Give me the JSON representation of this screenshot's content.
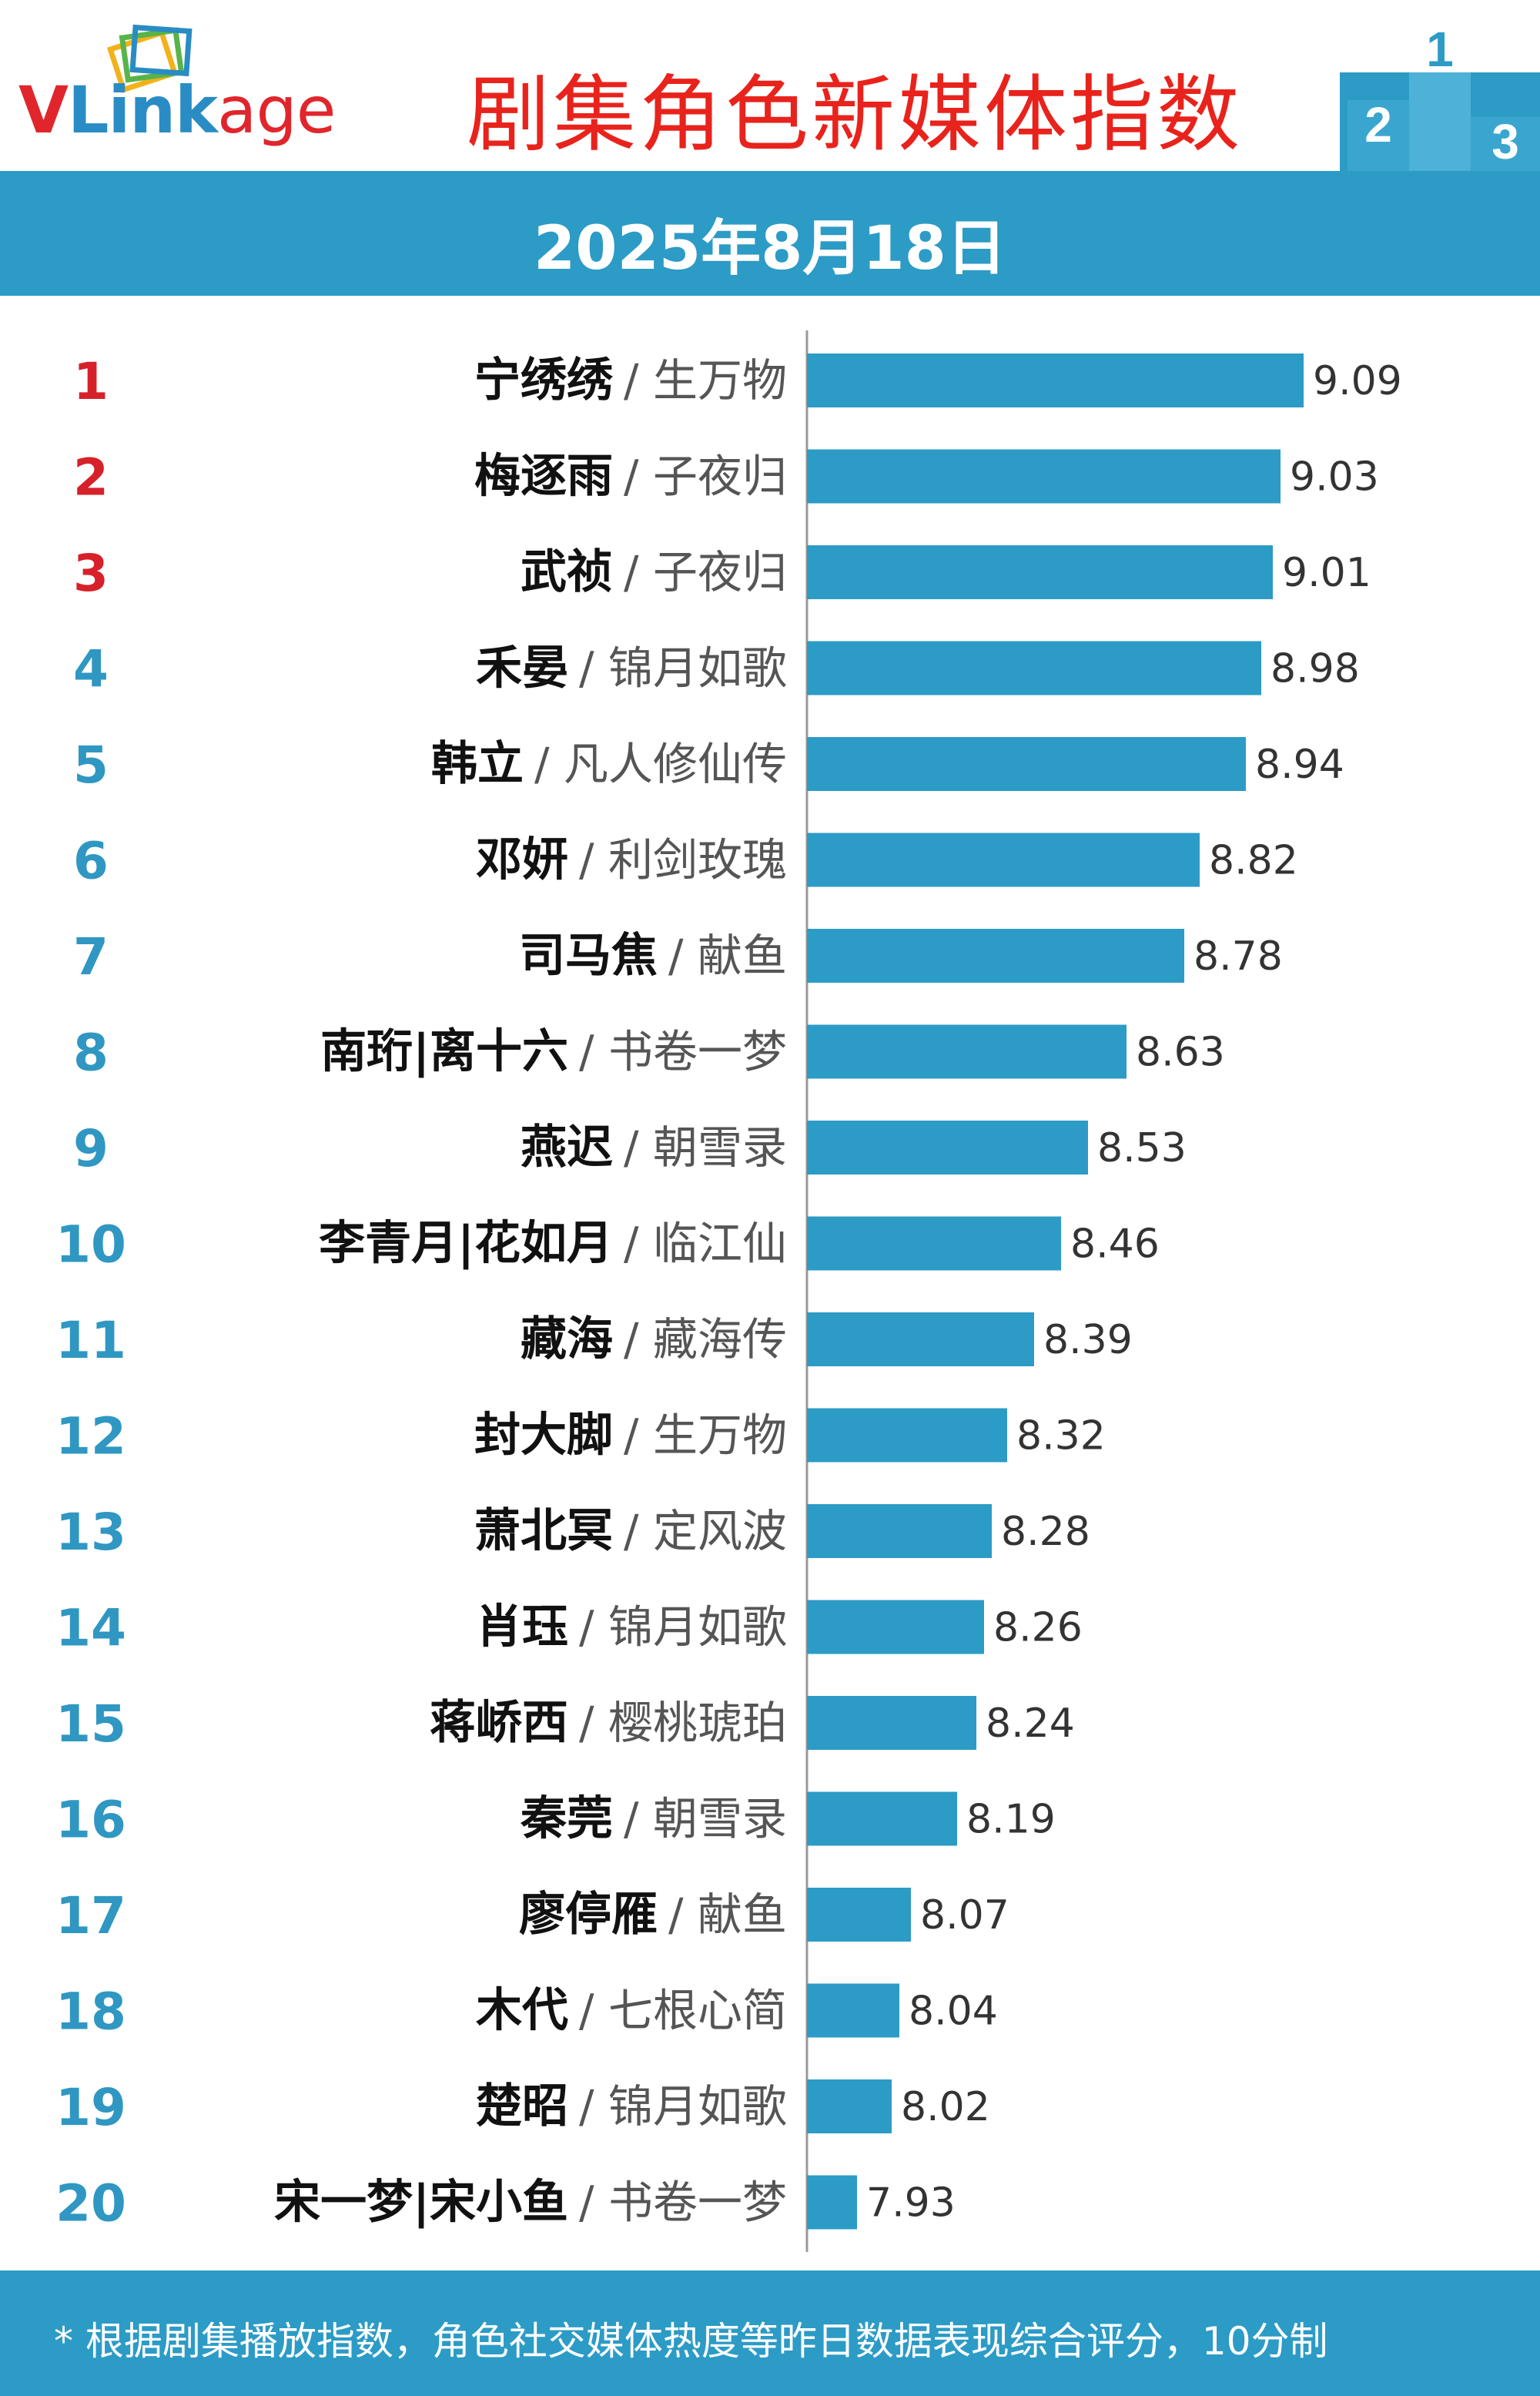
{
  "header": {
    "logo_text": {
      "v": "V",
      "link": "Link",
      "age": "age"
    },
    "title": "剧集角色新媒体指数",
    "podium_digits": [
      "2",
      "1",
      "3"
    ]
  },
  "date": "2025年8月18日",
  "colors": {
    "bar": "#2c9bc6",
    "rank_top3": "#d7212a",
    "rank_other": "#2f97c2",
    "title": "#e8231c"
  },
  "chart_data": {
    "type": "bar",
    "orientation": "horizontal",
    "xlim": [
      7.8,
      9.2
    ],
    "grid": false,
    "categories": [
      {
        "rank": "1",
        "name": "宁绣绣",
        "show": "/ 生万物"
      },
      {
        "rank": "2",
        "name": "梅逐雨",
        "show": "/ 子夜归"
      },
      {
        "rank": "3",
        "name": "武祯",
        "show": "/ 子夜归"
      },
      {
        "rank": "4",
        "name": "禾晏",
        "show": "/ 锦月如歌"
      },
      {
        "rank": "5",
        "name": "韩立",
        "show": "/ 凡人修仙传"
      },
      {
        "rank": "6",
        "name": "邓妍",
        "show": "/ 利剑玫瑰"
      },
      {
        "rank": "7",
        "name": "司马焦",
        "show": "/ 献鱼"
      },
      {
        "rank": "8",
        "name": "南珩|离十六",
        "show": "/ 书卷一梦"
      },
      {
        "rank": "9",
        "name": "燕迟",
        "show": "/ 朝雪录"
      },
      {
        "rank": "10",
        "name": "李青月|花如月",
        "show": "/ 临江仙"
      },
      {
        "rank": "11",
        "name": "藏海",
        "show": "/ 藏海传"
      },
      {
        "rank": "12",
        "name": "封大脚",
        "show": "/ 生万物"
      },
      {
        "rank": "13",
        "name": "萧北冥",
        "show": "/ 定风波"
      },
      {
        "rank": "14",
        "name": "肖珏",
        "show": "/ 锦月如歌"
      },
      {
        "rank": "15",
        "name": "蒋峤西",
        "show": "/ 樱桃琥珀"
      },
      {
        "rank": "16",
        "name": "秦莞",
        "show": "/ 朝雪录"
      },
      {
        "rank": "17",
        "name": "廖停雁",
        "show": "/ 献鱼"
      },
      {
        "rank": "18",
        "name": "木代",
        "show": "/ 七根心简"
      },
      {
        "rank": "19",
        "name": "楚昭",
        "show": "/ 锦月如歌"
      },
      {
        "rank": "20",
        "name": "宋一梦|宋小鱼",
        "show": "/ 书卷一梦"
      }
    ],
    "values": [
      9.09,
      9.03,
      9.01,
      8.98,
      8.94,
      8.82,
      8.78,
      8.63,
      8.53,
      8.46,
      8.39,
      8.32,
      8.28,
      8.26,
      8.24,
      8.19,
      8.07,
      8.04,
      8.02,
      7.93
    ],
    "value_labels": [
      "9.09",
      "9.03",
      "9.01",
      "8.98",
      "8.94",
      "8.82",
      "8.78",
      "8.63",
      "8.53",
      "8.46",
      "8.39",
      "8.32",
      "8.28",
      "8.26",
      "8.24",
      "8.19",
      "8.07",
      "8.04",
      "8.02",
      "7.93"
    ]
  },
  "footer": {
    "note": "* 根据剧集播放指数，角色社交媒体热度等昨日数据表现综合评分，10分制"
  }
}
